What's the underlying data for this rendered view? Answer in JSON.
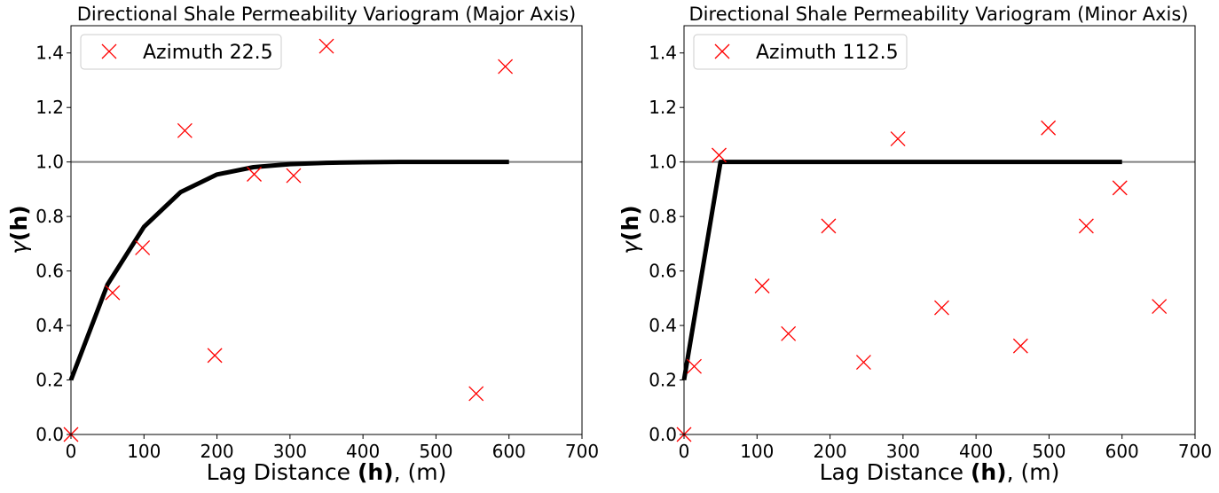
{
  "chart_data": [
    {
      "type": "scatter",
      "title": "Directional Shale Permeability Variogram (Major Axis)",
      "xlabel_parts": [
        "Lag Distance ",
        "(h)",
        ", (m)"
      ],
      "ylabel_parts": [
        "γ",
        "(h)"
      ],
      "xlim": [
        0,
        700
      ],
      "ylim": [
        0,
        1.5
      ],
      "xticks": [
        "0",
        "100",
        "200",
        "300",
        "400",
        "500",
        "600",
        "700"
      ],
      "xtick_values": [
        0,
        100,
        200,
        300,
        400,
        500,
        600,
        700
      ],
      "yticks": [
        "0.0",
        "0.2",
        "0.4",
        "0.6",
        "0.8",
        "1.0",
        "1.2",
        "1.4"
      ],
      "ytick_values": [
        0.0,
        0.2,
        0.4,
        0.6,
        0.8,
        1.0,
        1.2,
        1.4
      ],
      "legend": {
        "label": "Azimuth 22.5",
        "placement": "upper-left"
      },
      "reference_line": {
        "y": 1.0,
        "color": "#808080"
      },
      "series": [
        {
          "name": "Azimuth 22.5",
          "marker": "x",
          "color": "#ff0000",
          "points": [
            [
              0,
              0.0
            ],
            [
              57,
              0.52
            ],
            [
              98,
              0.685
            ],
            [
              156,
              1.115
            ],
            [
              197,
              0.29
            ],
            [
              251,
              0.955
            ],
            [
              305,
              0.95
            ],
            [
              350,
              1.425
            ],
            [
              555,
              0.15
            ],
            [
              595,
              1.35
            ]
          ]
        }
      ],
      "model": {
        "color": "#000000",
        "points": [
          [
            0,
            0.2
          ],
          [
            50,
            0.55
          ],
          [
            100,
            0.762
          ],
          [
            150,
            0.889
          ],
          [
            200,
            0.954
          ],
          [
            250,
            0.981
          ],
          [
            300,
            0.992
          ],
          [
            350,
            0.997
          ],
          [
            400,
            0.999
          ],
          [
            450,
            1.0
          ],
          [
            500,
            1.0
          ],
          [
            550,
            1.0
          ],
          [
            600,
            1.0
          ]
        ]
      }
    },
    {
      "type": "scatter",
      "title": "Directional Shale Permeability Variogram (Minor Axis)",
      "xlabel_parts": [
        "Lag Distance ",
        "(h)",
        ", (m)"
      ],
      "ylabel_parts": [
        "γ",
        "(h)"
      ],
      "xlim": [
        0,
        700
      ],
      "ylim": [
        0,
        1.5
      ],
      "xticks": [
        "0",
        "100",
        "200",
        "300",
        "400",
        "500",
        "600",
        "700"
      ],
      "xtick_values": [
        0,
        100,
        200,
        300,
        400,
        500,
        600,
        700
      ],
      "yticks": [
        "0.0",
        "0.2",
        "0.4",
        "0.6",
        "0.8",
        "1.0",
        "1.2",
        "1.4"
      ],
      "ytick_values": [
        0.0,
        0.2,
        0.4,
        0.6,
        0.8,
        1.0,
        1.2,
        1.4
      ],
      "legend": {
        "label": "Azimuth 112.5",
        "placement": "upper-left"
      },
      "reference_line": {
        "y": 1.0,
        "color": "#808080"
      },
      "series": [
        {
          "name": "Azimuth 112.5",
          "marker": "x",
          "color": "#ff0000",
          "points": [
            [
              0,
              0.0
            ],
            [
              14,
              0.25
            ],
            [
              48,
              1.025
            ],
            [
              107,
              0.545
            ],
            [
              143,
              0.37
            ],
            [
              198,
              0.765
            ],
            [
              246,
              0.265
            ],
            [
              293,
              1.085
            ],
            [
              353,
              0.465
            ],
            [
              461,
              0.325
            ],
            [
              499,
              1.125
            ],
            [
              551,
              0.765
            ],
            [
              597,
              0.905
            ],
            [
              651,
              0.47
            ]
          ]
        }
      ],
      "model": {
        "color": "#000000",
        "points": [
          [
            0,
            0.2
          ],
          [
            50,
            1.0
          ],
          [
            600,
            1.0
          ]
        ]
      }
    }
  ]
}
